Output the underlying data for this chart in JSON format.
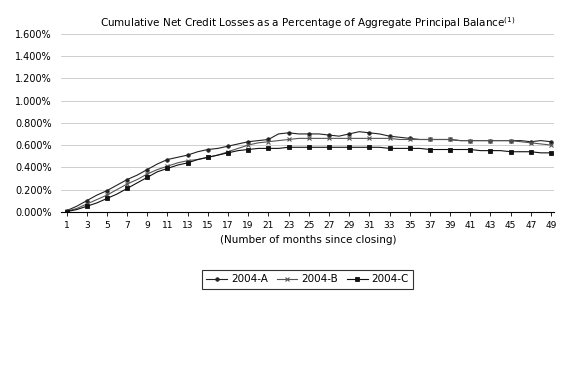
{
  "title": "Cumulative Net Credit Losses as a Percentage of Aggregate Principal Balance",
  "title_superscript": "(1)",
  "xlabel": "(Number of months since closing)",
  "ylabel": "",
  "xlim": [
    1,
    49
  ],
  "ylim": [
    0.0,
    0.016
  ],
  "yticks": [
    0.0,
    0.002,
    0.004,
    0.006,
    0.008,
    0.01,
    0.012,
    0.014,
    0.016
  ],
  "ytick_labels": [
    "0.000%",
    "0.200%",
    "0.400%",
    "0.600%",
    "0.800%",
    "1.000%",
    "1.200%",
    "1.400%",
    "1.600%"
  ],
  "xticks": [
    1,
    3,
    5,
    7,
    9,
    11,
    13,
    15,
    17,
    19,
    21,
    23,
    25,
    27,
    29,
    31,
    33,
    35,
    37,
    39,
    41,
    43,
    45,
    47,
    49
  ],
  "series_2004A": [
    0.0001,
    0.0005,
    0.001,
    0.0015,
    0.0019,
    0.0024,
    0.0029,
    0.0033,
    0.0038,
    0.0043,
    0.0047,
    0.0049,
    0.0051,
    0.0054,
    0.0056,
    0.0057,
    0.0059,
    0.0061,
    0.0063,
    0.0064,
    0.0065,
    0.007,
    0.0071,
    0.007,
    0.007,
    0.007,
    0.0069,
    0.0068,
    0.007,
    0.0072,
    0.0071,
    0.007,
    0.0068,
    0.0067,
    0.0066,
    0.0065,
    0.0065,
    0.0065,
    0.0065,
    0.0064,
    0.0064,
    0.0064,
    0.0064,
    0.0064,
    0.0064,
    0.0064,
    0.0063,
    0.0064,
    0.0063
  ],
  "series_2004B": [
    5e-05,
    0.0003,
    0.0007,
    0.0011,
    0.0015,
    0.002,
    0.0025,
    0.0029,
    0.0034,
    0.0038,
    0.0041,
    0.0044,
    0.0046,
    0.0047,
    0.0049,
    0.0051,
    0.0054,
    0.0057,
    0.006,
    0.0062,
    0.0063,
    0.0064,
    0.0065,
    0.0066,
    0.0066,
    0.0066,
    0.0066,
    0.0066,
    0.0066,
    0.0066,
    0.0066,
    0.0066,
    0.0066,
    0.0065,
    0.0065,
    0.0065,
    0.0065,
    0.0065,
    0.0065,
    0.0064,
    0.0064,
    0.0064,
    0.0064,
    0.0064,
    0.0064,
    0.0063,
    0.0062,
    0.0061,
    0.006
  ],
  "series_2004C": [
    2e-05,
    0.0002,
    0.0005,
    0.0008,
    0.0012,
    0.0016,
    0.0021,
    0.0026,
    0.0031,
    0.0036,
    0.0039,
    0.0042,
    0.0044,
    0.0047,
    0.0049,
    0.0051,
    0.0053,
    0.0055,
    0.0056,
    0.0057,
    0.0057,
    0.0057,
    0.0058,
    0.0058,
    0.0058,
    0.0058,
    0.0058,
    0.0058,
    0.0058,
    0.0058,
    0.0058,
    0.0058,
    0.0057,
    0.0057,
    0.0057,
    0.0057,
    0.0056,
    0.0056,
    0.0056,
    0.0056,
    0.0056,
    0.0055,
    0.0055,
    0.0055,
    0.0054,
    0.0054,
    0.0054,
    0.0053,
    0.0053
  ],
  "color_2004A": "#222222",
  "color_2004B": "#555555",
  "color_2004C": "#111111",
  "marker_2004A": "o",
  "marker_2004B": "x",
  "marker_2004C": "s",
  "legend_labels": [
    "2004-A",
    "2004-B",
    "2004-C"
  ],
  "background_color": "#ffffff",
  "grid_color": "#bbbbbb"
}
